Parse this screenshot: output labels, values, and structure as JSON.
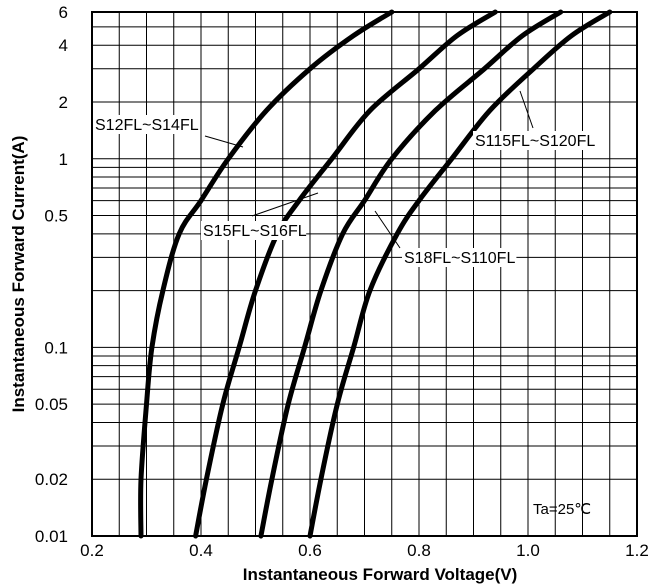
{
  "chart_data": {
    "type": "line",
    "title": "",
    "xlabel": "Instantaneous Forward Voltage(V)",
    "ylabel": "Instantaneous Forward Current(A)",
    "xlim": [
      0.2,
      1.2
    ],
    "ylim": [
      0.01,
      6
    ],
    "yscale": "log",
    "grid": true,
    "x_ticks": [
      0.2,
      0.4,
      0.6,
      0.8,
      1.0,
      1.2
    ],
    "x_tick_labels": [
      "0.2",
      "0.4",
      "0.6",
      "0.8",
      "1.0",
      "1.2"
    ],
    "y_ticks": [
      0.01,
      0.02,
      0.05,
      0.1,
      0.5,
      1,
      2,
      4,
      6
    ],
    "y_tick_labels": [
      "0.01",
      "0.02",
      "0.05",
      "0.1",
      "0.5",
      "1",
      "2",
      "4",
      "6"
    ],
    "annotation": "Ta=25℃",
    "series": [
      {
        "name": "S12FL~S14FL",
        "points": [
          [
            0.29,
            0.01
          ],
          [
            0.29,
            0.02
          ],
          [
            0.3,
            0.05
          ],
          [
            0.31,
            0.1
          ],
          [
            0.33,
            0.2
          ],
          [
            0.36,
            0.4
          ],
          [
            0.4,
            0.6
          ],
          [
            0.45,
            1.0
          ],
          [
            0.52,
            1.8
          ],
          [
            0.6,
            3.0
          ],
          [
            0.68,
            4.5
          ],
          [
            0.75,
            6.0
          ]
        ]
      },
      {
        "name": "S15FL~S16FL",
        "points": [
          [
            0.39,
            0.01
          ],
          [
            0.41,
            0.02
          ],
          [
            0.44,
            0.05
          ],
          [
            0.47,
            0.1
          ],
          [
            0.5,
            0.2
          ],
          [
            0.54,
            0.4
          ],
          [
            0.58,
            0.6
          ],
          [
            0.64,
            1.0
          ],
          [
            0.71,
            1.8
          ],
          [
            0.8,
            3.0
          ],
          [
            0.87,
            4.5
          ],
          [
            0.94,
            6.0
          ]
        ]
      },
      {
        "name": "S18FL~S110FL",
        "points": [
          [
            0.51,
            0.01
          ],
          [
            0.53,
            0.02
          ],
          [
            0.56,
            0.05
          ],
          [
            0.59,
            0.1
          ],
          [
            0.62,
            0.2
          ],
          [
            0.66,
            0.4
          ],
          [
            0.7,
            0.6
          ],
          [
            0.75,
            1.0
          ],
          [
            0.83,
            1.8
          ],
          [
            0.92,
            3.0
          ],
          [
            0.99,
            4.5
          ],
          [
            1.06,
            6.0
          ]
        ]
      },
      {
        "name": "S115FL~S120FL",
        "points": [
          [
            0.6,
            0.01
          ],
          [
            0.62,
            0.02
          ],
          [
            0.65,
            0.05
          ],
          [
            0.68,
            0.1
          ],
          [
            0.71,
            0.2
          ],
          [
            0.76,
            0.4
          ],
          [
            0.8,
            0.6
          ],
          [
            0.86,
            1.0
          ],
          [
            0.93,
            1.8
          ],
          [
            1.01,
            3.0
          ],
          [
            1.08,
            4.5
          ],
          [
            1.15,
            6.0
          ]
        ]
      }
    ]
  }
}
